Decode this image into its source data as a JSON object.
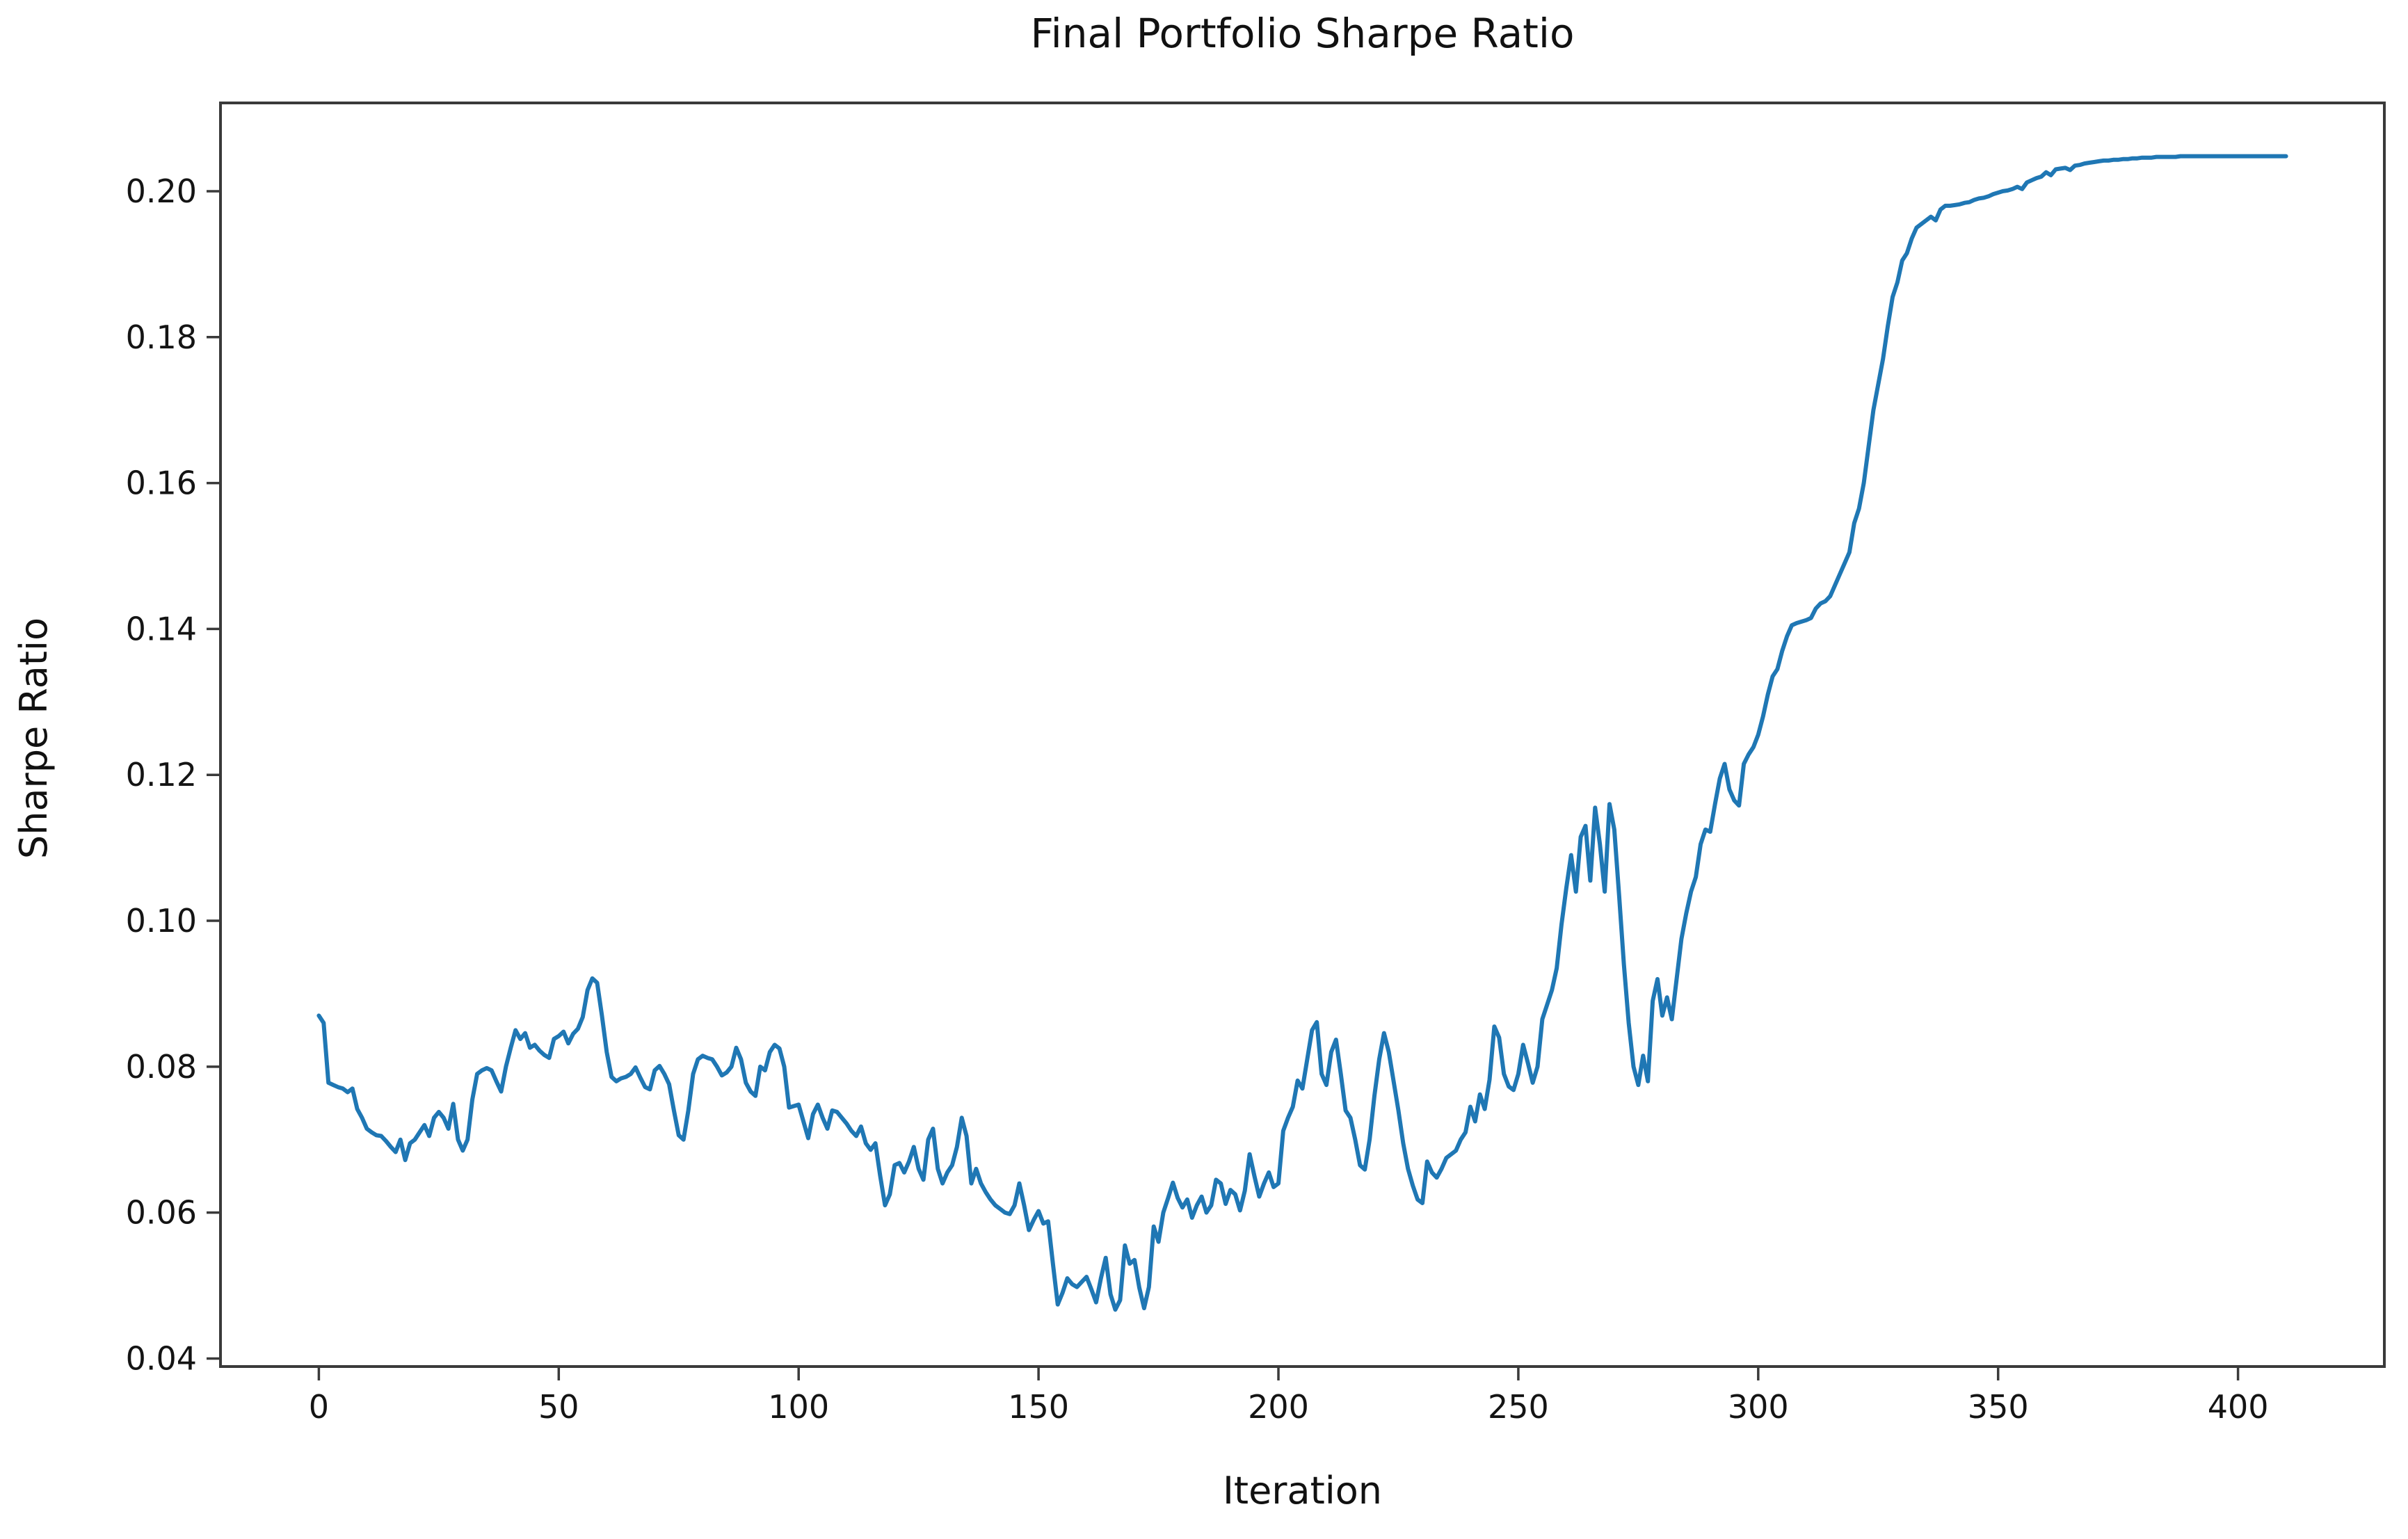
{
  "chart_data": {
    "type": "line",
    "title": "Final Portfolio Sharpe Ratio",
    "xlabel": "Iteration",
    "ylabel": "Sharpe Ratio",
    "legend_position": "none",
    "grid": false,
    "line_color": "#1f77b4",
    "axis_color": "#3a3a3a",
    "text_color": "#141414",
    "background_color": "#ffffff",
    "xlim": [
      -20.5,
      430.5
    ],
    "ylim": [
      0.0389,
      0.2121
    ],
    "x_ticks": [
      0,
      50,
      100,
      150,
      200,
      250,
      300,
      350,
      400
    ],
    "y_ticks": [
      0.04,
      0.06,
      0.08,
      0.1,
      0.12,
      0.14,
      0.16,
      0.18,
      0.2
    ],
    "y_tick_decimals": 2,
    "series": [
      {
        "name": "Sharpe Ratio",
        "x_start": 0,
        "x_step": 1,
        "values": [
          0.087,
          0.086,
          0.0778,
          0.0775,
          0.0772,
          0.077,
          0.0765,
          0.077,
          0.0742,
          0.073,
          0.0715,
          0.071,
          0.0706,
          0.0705,
          0.0698,
          0.069,
          0.0683,
          0.07,
          0.0672,
          0.0695,
          0.07,
          0.071,
          0.072,
          0.0705,
          0.073,
          0.0738,
          0.073,
          0.0715,
          0.0749,
          0.07,
          0.0685,
          0.07,
          0.0755,
          0.079,
          0.0795,
          0.0798,
          0.0795,
          0.078,
          0.0766,
          0.08,
          0.0826,
          0.085,
          0.0838,
          0.0846,
          0.0826,
          0.083,
          0.0822,
          0.0816,
          0.0812,
          0.0838,
          0.0842,
          0.0848,
          0.0832,
          0.0845,
          0.0852,
          0.0868,
          0.0905,
          0.0921,
          0.0915,
          0.087,
          0.082,
          0.0786,
          0.078,
          0.0784,
          0.0786,
          0.079,
          0.0799,
          0.0785,
          0.0772,
          0.0769,
          0.0795,
          0.0801,
          0.079,
          0.0776,
          0.074,
          0.0706,
          0.07,
          0.074,
          0.079,
          0.081,
          0.0815,
          0.0812,
          0.081,
          0.08,
          0.0788,
          0.0792,
          0.08,
          0.0826,
          0.081,
          0.0778,
          0.0766,
          0.076,
          0.08,
          0.0795,
          0.082,
          0.083,
          0.0825,
          0.08,
          0.0744,
          0.0746,
          0.0748,
          0.0725,
          0.0702,
          0.0735,
          0.0748,
          0.073,
          0.0715,
          0.074,
          0.0738,
          0.073,
          0.0722,
          0.0712,
          0.0705,
          0.0718,
          0.0695,
          0.0686,
          0.0695,
          0.065,
          0.061,
          0.0625,
          0.0665,
          0.0668,
          0.0655,
          0.067,
          0.069,
          0.066,
          0.0645,
          0.07,
          0.0715,
          0.066,
          0.064,
          0.0655,
          0.0665,
          0.069,
          0.073,
          0.0705,
          0.064,
          0.066,
          0.064,
          0.0628,
          0.0618,
          0.061,
          0.0605,
          0.06,
          0.0598,
          0.061,
          0.064,
          0.061,
          0.0576,
          0.059,
          0.0602,
          0.0585,
          0.0588,
          0.053,
          0.0474,
          0.049,
          0.051,
          0.0502,
          0.0498,
          0.0505,
          0.0512,
          0.0495,
          0.0477,
          0.051,
          0.0538,
          0.0488,
          0.0467,
          0.048,
          0.0555,
          0.053,
          0.0535,
          0.0497,
          0.0469,
          0.0498,
          0.0581,
          0.056,
          0.06,
          0.062,
          0.0641,
          0.062,
          0.0607,
          0.0618,
          0.0593,
          0.061,
          0.0622,
          0.06,
          0.061,
          0.0645,
          0.064,
          0.0612,
          0.0631,
          0.0625,
          0.0603,
          0.063,
          0.068,
          0.065,
          0.0622,
          0.064,
          0.0655,
          0.0635,
          0.064,
          0.0712,
          0.073,
          0.0745,
          0.0781,
          0.077,
          0.081,
          0.085,
          0.0861,
          0.079,
          0.0775,
          0.082,
          0.0837,
          0.079,
          0.074,
          0.073,
          0.07,
          0.0665,
          0.0659,
          0.07,
          0.076,
          0.081,
          0.0846,
          0.082,
          0.078,
          0.074,
          0.0695,
          0.066,
          0.0637,
          0.0618,
          0.0613,
          0.067,
          0.0655,
          0.0648,
          0.066,
          0.0675,
          0.068,
          0.0685,
          0.07,
          0.071,
          0.0745,
          0.0725,
          0.0762,
          0.0742,
          0.0782,
          0.0855,
          0.084,
          0.079,
          0.0773,
          0.0768,
          0.079,
          0.083,
          0.0805,
          0.0778,
          0.08,
          0.0865,
          0.0885,
          0.0905,
          0.0935,
          0.0995,
          0.1045,
          0.109,
          0.104,
          0.1115,
          0.113,
          0.1055,
          0.1155,
          0.1105,
          0.104,
          0.116,
          0.1125,
          0.1035,
          0.094,
          0.086,
          0.08,
          0.0775,
          0.0815,
          0.078,
          0.089,
          0.092,
          0.087,
          0.0895,
          0.0865,
          0.092,
          0.0975,
          0.101,
          0.104,
          0.106,
          0.1105,
          0.1125,
          0.1122,
          0.116,
          0.1195,
          0.1215,
          0.118,
          0.1165,
          0.1158,
          0.1215,
          0.1228,
          0.1238,
          0.1255,
          0.128,
          0.131,
          0.1335,
          0.1345,
          0.137,
          0.139,
          0.1405,
          0.1408,
          0.141,
          0.1412,
          0.1415,
          0.1428,
          0.1435,
          0.1438,
          0.1445,
          0.146,
          0.1475,
          0.149,
          0.1505,
          0.1545,
          0.1565,
          0.16,
          0.165,
          0.17,
          0.1735,
          0.177,
          0.1815,
          0.1855,
          0.1875,
          0.1905,
          0.1915,
          0.1935,
          0.195,
          0.1955,
          0.196,
          0.1965,
          0.196,
          0.1975,
          0.198,
          0.198,
          0.1981,
          0.1982,
          0.1984,
          0.1985,
          0.1988,
          0.199,
          0.1991,
          0.1993,
          0.1996,
          0.1998,
          0.2,
          0.2001,
          0.2003,
          0.2006,
          0.2003,
          0.2012,
          0.2015,
          0.2018,
          0.202,
          0.2026,
          0.2022,
          0.203,
          0.2031,
          0.2032,
          0.2029,
          0.2035,
          0.2036,
          0.2038,
          0.2039,
          0.204,
          0.2041,
          0.2042,
          0.2042,
          0.2043,
          0.2043,
          0.2044,
          0.2044,
          0.2045,
          0.2045,
          0.2046,
          0.2046,
          0.2046,
          0.2047,
          0.2047,
          0.2047,
          0.2047,
          0.2047,
          0.2048,
          0.2048,
          0.2048,
          0.2048,
          0.2048,
          0.2048,
          0.2048,
          0.2048,
          0.2048,
          0.2048,
          0.2048,
          0.2048,
          0.2048,
          0.2048,
          0.2048,
          0.2048,
          0.2048,
          0.2048,
          0.2048,
          0.2048,
          0.2048,
          0.2048,
          0.2048
        ]
      }
    ]
  }
}
